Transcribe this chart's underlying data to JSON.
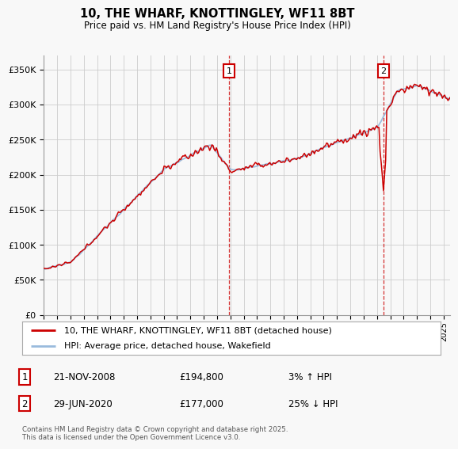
{
  "title": "10, THE WHARF, KNOTTINGLEY, WF11 8BT",
  "subtitle": "Price paid vs. HM Land Registry's House Price Index (HPI)",
  "legend_line1": "10, THE WHARF, KNOTTINGLEY, WF11 8BT (detached house)",
  "legend_line2": "HPI: Average price, detached house, Wakefield",
  "footer": "Contains HM Land Registry data © Crown copyright and database right 2025.\nThis data is licensed under the Open Government Licence v3.0.",
  "annotation1_label": "1",
  "annotation1_date": "21-NOV-2008",
  "annotation1_price": "£194,800",
  "annotation1_hpi": "3% ↑ HPI",
  "annotation2_label": "2",
  "annotation2_date": "29-JUN-2020",
  "annotation2_price": "£177,000",
  "annotation2_hpi": "25% ↓ HPI",
  "price_color": "#cc0000",
  "hpi_color": "#99bbdd",
  "background_color": "#f8f8f8",
  "grid_color": "#cccccc",
  "ylim": [
    0,
    370000
  ],
  "yticks": [
    0,
    50000,
    100000,
    150000,
    200000,
    250000,
    300000,
    350000
  ],
  "ytick_labels": [
    "£0",
    "£50K",
    "£100K",
    "£150K",
    "£200K",
    "£250K",
    "£300K",
    "£350K"
  ],
  "year_start": 1995,
  "year_end": 2025,
  "marker1_year": 2008.9,
  "marker1_price": 194800,
  "marker2_year": 2020.5,
  "marker2_price": 177000
}
